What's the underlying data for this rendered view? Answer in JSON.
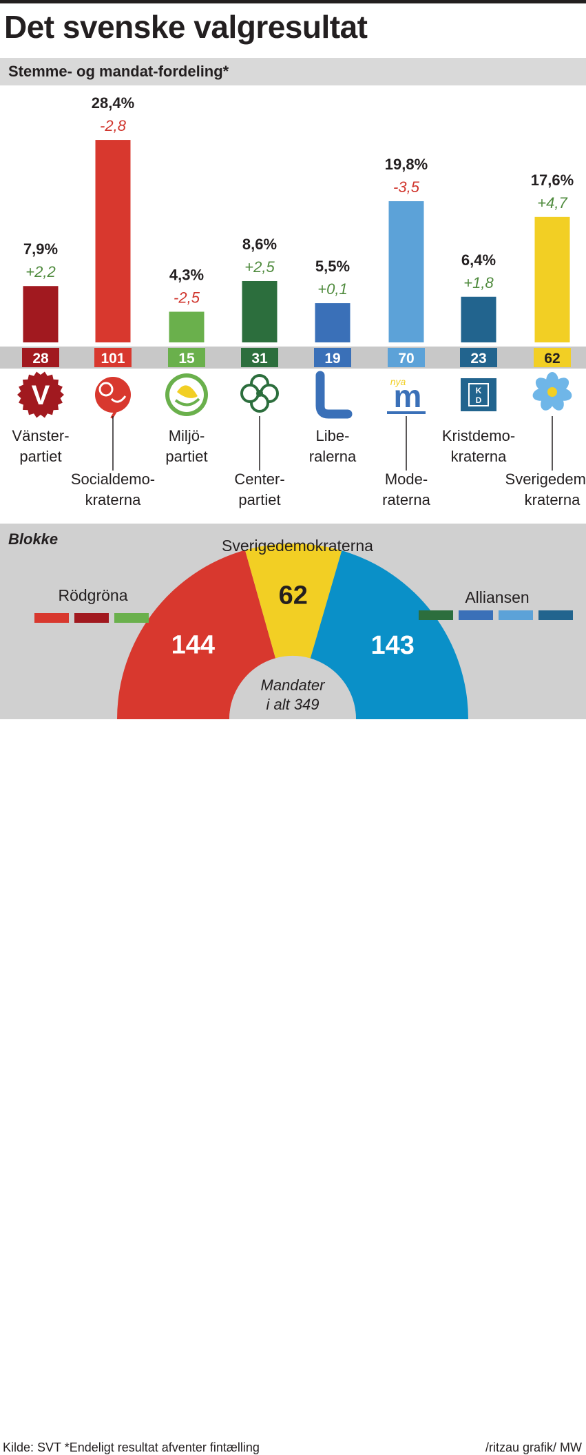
{
  "title": "Det svenske valgresultat",
  "subtitle": "Stemme- og mandat-fordeling*",
  "chart_data": {
    "type": "bar",
    "categories": [
      "Vänsterpartiet",
      "Socialdemokraterna",
      "Miljöpartiet",
      "Centerpartiet",
      "Liberalerna",
      "Moderaterna",
      "Kristdemokraterna",
      "Sverigedemokraterna"
    ],
    "values": [
      7.9,
      28.4,
      4.3,
      8.6,
      5.5,
      19.8,
      6.4,
      17.6
    ],
    "value_labels": [
      "7,9%",
      "28,4%",
      "4,3%",
      "8,6%",
      "5,5%",
      "19,8%",
      "6,4%",
      "17,6%"
    ],
    "change_labels": [
      "+2,2",
      "-2,8",
      "-2,5",
      "+2,5",
      "+0,1",
      "-3,5",
      "+1,8",
      "+4,7"
    ],
    "change_colors": [
      "#4e8a3c",
      "#d0342c",
      "#d0342c",
      "#4e8a3c",
      "#4e8a3c",
      "#d0342c",
      "#4e8a3c",
      "#4e8a3c"
    ],
    "seats": [
      28,
      101,
      15,
      31,
      19,
      70,
      23,
      62
    ],
    "name_lines": [
      [
        "Vänster-",
        "partiet"
      ],
      [
        "Socialdemo-",
        "kraterna"
      ],
      [
        "Miljö-",
        "partiet"
      ],
      [
        "Center-",
        "partiet"
      ],
      [
        "Libe-",
        "ralerna"
      ],
      [
        "Mode-",
        "raterna"
      ],
      [
        "Kristdemo-",
        "kraterna"
      ],
      [
        "Sverigedemo-",
        "kraterna"
      ]
    ],
    "colors": [
      "#a1191f",
      "#d8382e",
      "#6ab04c",
      "#2c6e3d",
      "#3a70b8",
      "#5ca2d8",
      "#22648e",
      "#f2cf24"
    ],
    "seat_text_colors": [
      "#ffffff",
      "#ffffff",
      "#ffffff",
      "#ffffff",
      "#ffffff",
      "#ffffff",
      "#ffffff",
      "#231f20"
    ],
    "logos": [
      "v-logo",
      "rose-logo",
      "dandelion-logo",
      "clover-logo",
      "l-logo",
      "m-logo",
      "kd-logo",
      "anemone-logo"
    ],
    "blocs": {
      "title": "Blokke",
      "total_label_lines": [
        "Mandater",
        "i alt 349"
      ],
      "segments": [
        {
          "name": "Rödgröna",
          "seats": 144,
          "color": "#d8382e"
        },
        {
          "name": "Sverigedemokraterna",
          "seats": 62,
          "color": "#f2cf24"
        },
        {
          "name": "Alliansen",
          "seats": 143,
          "color": "#0a90c8"
        }
      ],
      "rodgrona_legend_colors": [
        "#d8382e",
        "#a1191f",
        "#6ab04c"
      ],
      "alliansen_legend_colors": [
        "#2c6e3d",
        "#3a70b8",
        "#5ca2d8",
        "#22648e"
      ]
    }
  },
  "footer": {
    "source": "Kilde: SVT *Endeligt resultat afventer fintælling",
    "credit": "/ritzau grafik/ MW"
  }
}
